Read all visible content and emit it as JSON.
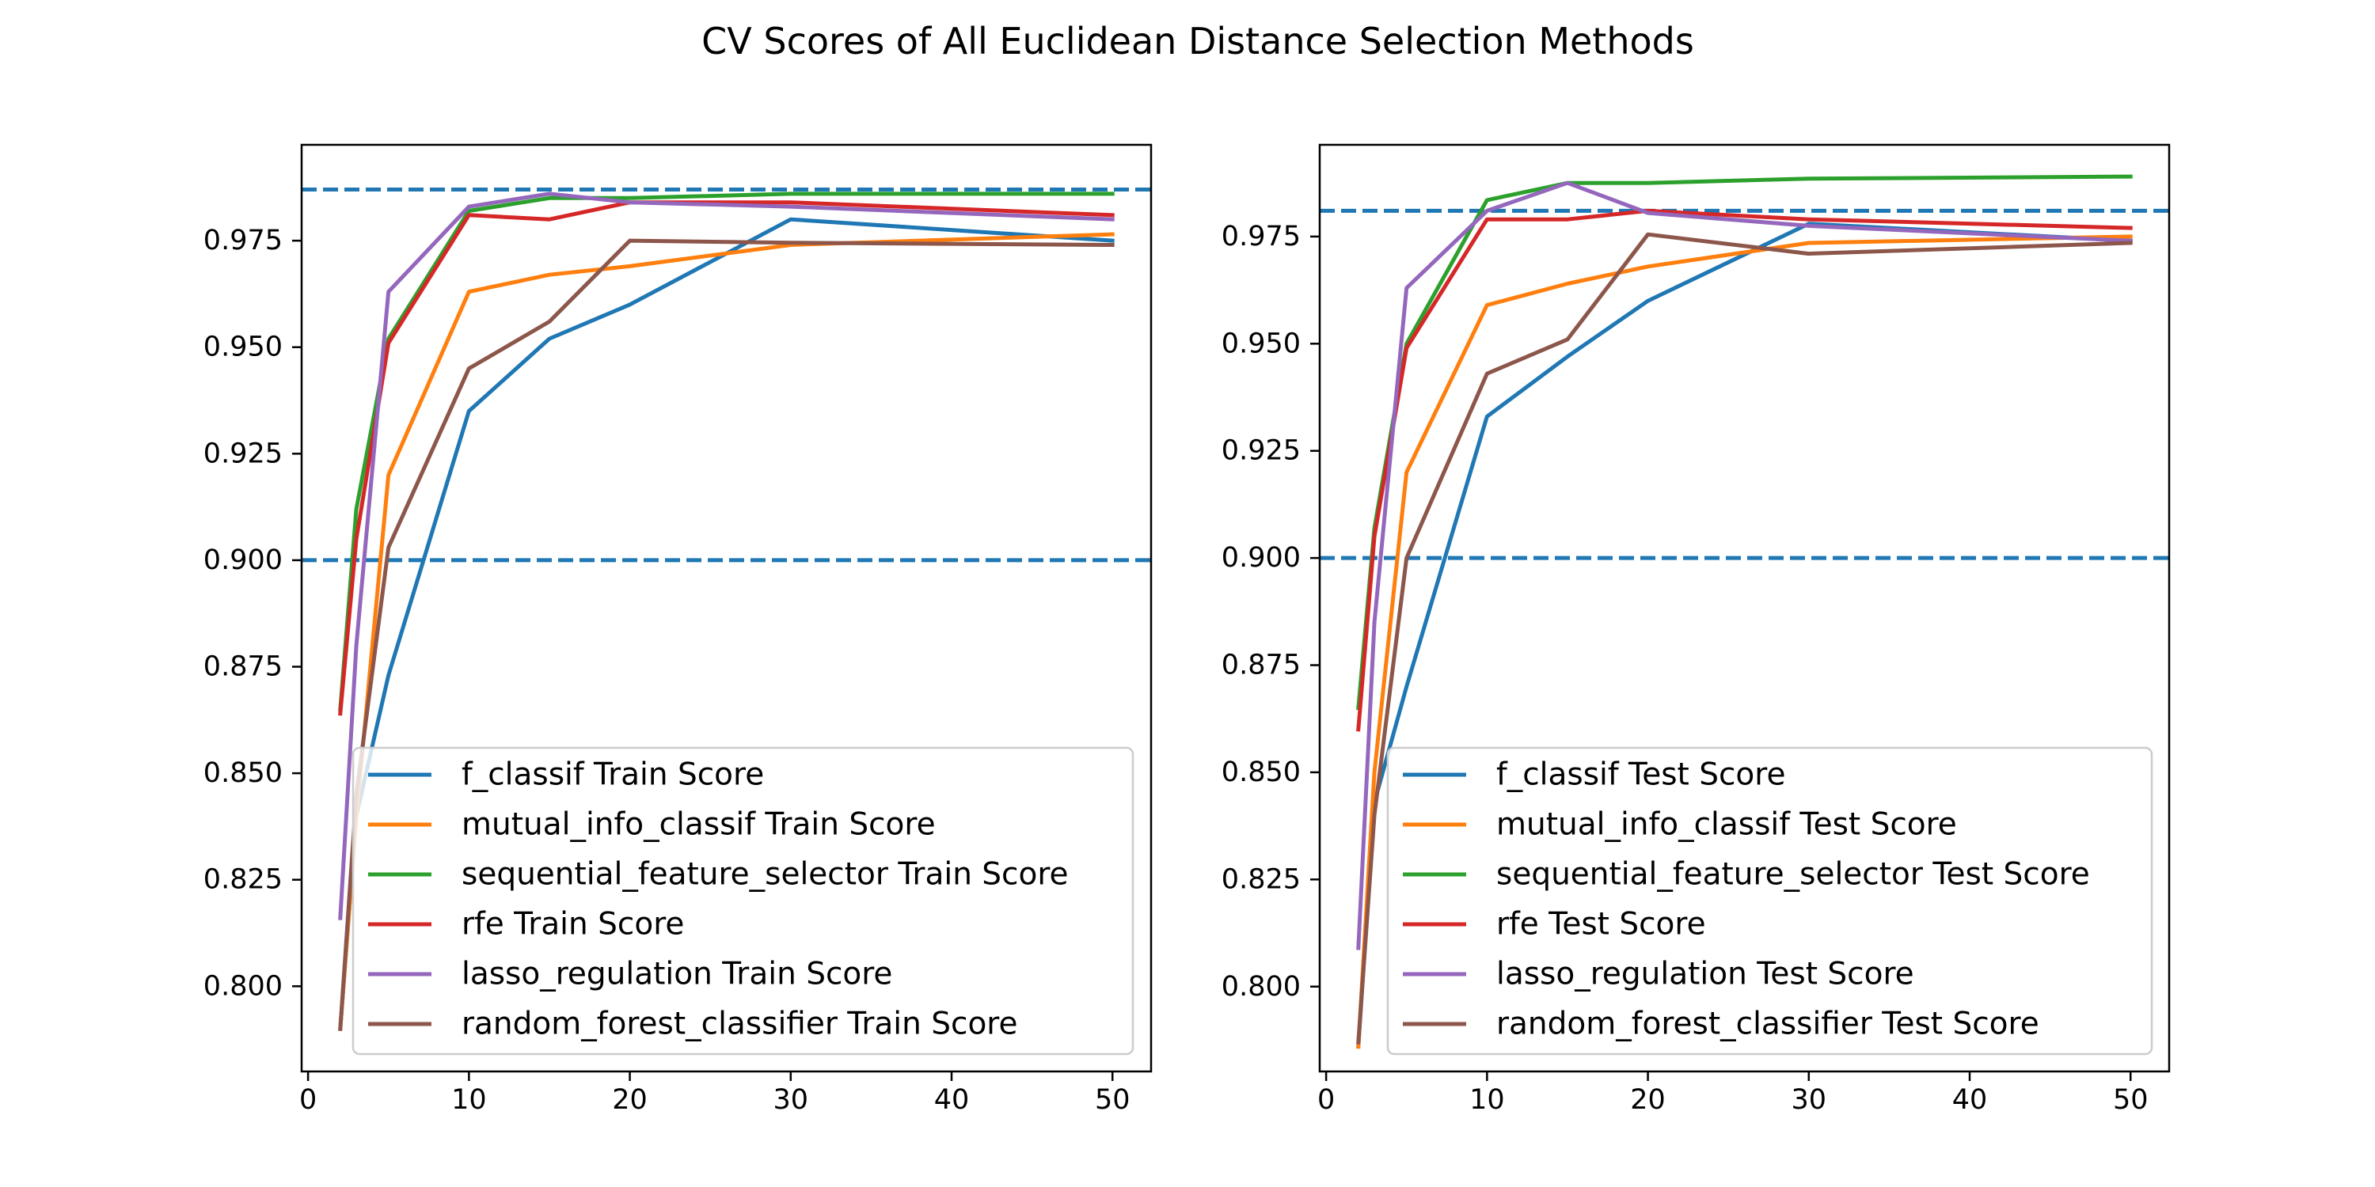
{
  "suptitle": "CV Scores of All Euclidean Distance Selection Methods",
  "colors": {
    "f_classif": "#1f77b4",
    "mutual_info_classif": "#ff7f0e",
    "sequential_feature_selector": "#2ca02c",
    "rfe": "#d62728",
    "lasso_regulation": "#9467bd",
    "random_forest_classifier": "#8c564b",
    "reference_lines": "#1f77b4"
  },
  "chart_data": [
    {
      "type": "line",
      "title": "",
      "xlabel": "",
      "ylabel": "",
      "xlim": [
        -0.4,
        52.4
      ],
      "ylim": [
        0.78,
        0.9975
      ],
      "xticks": [
        0,
        10,
        20,
        30,
        40,
        50
      ],
      "yticks": [
        0.8,
        0.825,
        0.85,
        0.875,
        0.9,
        0.925,
        0.95,
        0.975
      ],
      "ytick_labels": [
        "0.800",
        "0.825",
        "0.850",
        "0.875",
        "0.900",
        "0.925",
        "0.950",
        "0.975"
      ],
      "reference_lines": [
        0.987,
        0.9
      ],
      "legend_position": "lower right",
      "series": [
        {
          "name": "f_classif Train Score",
          "color_key": "f_classif",
          "x": [
            2,
            3,
            5,
            10,
            15,
            20,
            30,
            50
          ],
          "y": [
            0.79,
            0.84,
            0.873,
            0.935,
            0.952,
            0.96,
            0.98,
            0.975
          ]
        },
        {
          "name": "mutual_info_classif Train Score",
          "color_key": "mutual_info_classif",
          "x": [
            2,
            3,
            5,
            10,
            15,
            20,
            30,
            50
          ],
          "y": [
            0.79,
            0.84,
            0.92,
            0.963,
            0.967,
            0.969,
            0.974,
            0.9765
          ]
        },
        {
          "name": "sequential_feature_selector Train Score",
          "color_key": "sequential_feature_selector",
          "x": [
            2,
            3,
            5,
            10,
            15,
            20,
            30,
            50
          ],
          "y": [
            0.865,
            0.912,
            0.952,
            0.982,
            0.985,
            0.985,
            0.986,
            0.986
          ]
        },
        {
          "name": "rfe Train Score",
          "color_key": "rfe",
          "x": [
            2,
            3,
            5,
            10,
            15,
            20,
            30,
            50
          ],
          "y": [
            0.864,
            0.905,
            0.951,
            0.981,
            0.98,
            0.984,
            0.984,
            0.981
          ]
        },
        {
          "name": "lasso_regulation Train Score",
          "color_key": "lasso_regulation",
          "x": [
            2,
            3,
            5,
            10,
            15,
            20,
            30,
            50
          ],
          "y": [
            0.816,
            0.88,
            0.963,
            0.983,
            0.986,
            0.984,
            0.983,
            0.98
          ]
        },
        {
          "name": "random_forest_classifier Train Score",
          "color_key": "random_forest_classifier",
          "x": [
            2,
            3,
            5,
            10,
            15,
            20,
            30,
            50
          ],
          "y": [
            0.79,
            0.845,
            0.903,
            0.945,
            0.956,
            0.975,
            0.9745,
            0.974
          ]
        }
      ]
    },
    {
      "type": "line",
      "title": "",
      "xlabel": "",
      "ylabel": "",
      "xlim": [
        -0.4,
        52.4
      ],
      "ylim": [
        0.7802,
        0.9964
      ],
      "xticks": [
        0,
        10,
        20,
        30,
        40,
        50
      ],
      "yticks": [
        0.8,
        0.825,
        0.85,
        0.875,
        0.9,
        0.925,
        0.95,
        0.975
      ],
      "ytick_labels": [
        "0.800",
        "0.825",
        "0.850",
        "0.875",
        "0.900",
        "0.925",
        "0.950",
        "0.975"
      ],
      "reference_lines": [
        0.981,
        0.9
      ],
      "legend_position": "lower right",
      "series": [
        {
          "name": "f_classif Test Score",
          "color_key": "f_classif",
          "x": [
            2,
            3,
            5,
            10,
            15,
            20,
            30,
            50
          ],
          "y": [
            0.786,
            0.843,
            0.87,
            0.933,
            0.947,
            0.96,
            0.978,
            0.974
          ]
        },
        {
          "name": "mutual_info_classif Test Score",
          "color_key": "mutual_info_classif",
          "x": [
            2,
            3,
            5,
            10,
            15,
            20,
            30,
            50
          ],
          "y": [
            0.786,
            0.85,
            0.92,
            0.959,
            0.964,
            0.968,
            0.9735,
            0.975
          ]
        },
        {
          "name": "sequential_feature_selector Test Score",
          "color_key": "sequential_feature_selector",
          "x": [
            2,
            3,
            5,
            10,
            15,
            20,
            30,
            50
          ],
          "y": [
            0.865,
            0.907,
            0.95,
            0.9835,
            0.9875,
            0.9875,
            0.9885,
            0.989
          ]
        },
        {
          "name": "rfe Test Score",
          "color_key": "rfe",
          "x": [
            2,
            3,
            5,
            10,
            15,
            20,
            30,
            50
          ],
          "y": [
            0.86,
            0.905,
            0.949,
            0.979,
            0.979,
            0.981,
            0.979,
            0.977
          ]
        },
        {
          "name": "lasso_regulation Test Score",
          "color_key": "lasso_regulation",
          "x": [
            2,
            3,
            5,
            10,
            15,
            20,
            30,
            50
          ],
          "y": [
            0.809,
            0.885,
            0.963,
            0.981,
            0.9875,
            0.9805,
            0.9775,
            0.974
          ]
        },
        {
          "name": "random_forest_classifier Test Score",
          "color_key": "random_forest_classifier",
          "x": [
            2,
            3,
            5,
            10,
            15,
            20,
            30,
            50
          ],
          "y": [
            0.787,
            0.84,
            0.9,
            0.943,
            0.951,
            0.9755,
            0.971,
            0.9735
          ]
        }
      ]
    }
  ]
}
